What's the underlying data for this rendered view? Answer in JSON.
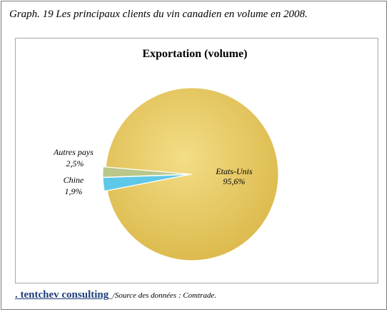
{
  "caption": "Graph. 19 Les principaux clients du vin canadien en volume en 2008.",
  "footer": {
    "brand": ". tentchev consulting",
    "separator": "_/",
    "source": "Source des données : Comtrade."
  },
  "colors": {
    "etats_unis": "#e8c75a",
    "autres_pays": "#5ec8e8",
    "chine": "#b9c78a"
  },
  "chart_data": {
    "type": "pie",
    "title": "Exportation (volume)",
    "slices": [
      {
        "label": "Etats-Unis",
        "value": 95.6,
        "value_label": "95,6%"
      },
      {
        "label": "Autres pays",
        "value": 2.5,
        "value_label": "2,5%"
      },
      {
        "label": "Chine",
        "value": 1.9,
        "value_label": "1,9%"
      }
    ],
    "legend": "none"
  }
}
